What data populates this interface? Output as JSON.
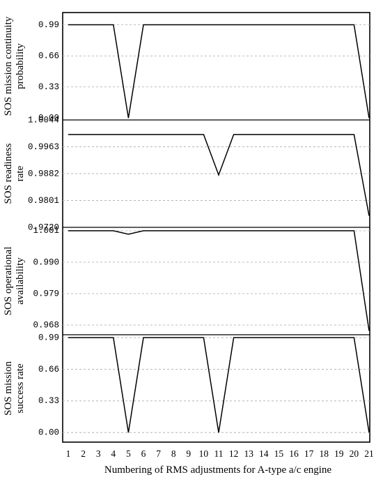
{
  "chart_data": [
    {
      "type": "line",
      "ylabel": [
        "SOS mission continuity",
        "probability"
      ],
      "yticks": [
        "0.99",
        "0.66",
        "0.33",
        "0.00"
      ],
      "ylim": [
        -0.02,
        1.12
      ],
      "x": [
        1,
        2,
        3,
        4,
        5,
        6,
        7,
        8,
        9,
        10,
        11,
        12,
        13,
        14,
        15,
        16,
        17,
        18,
        19,
        20,
        21
      ],
      "values": [
        0.99,
        0.99,
        0.99,
        0.99,
        0.0,
        0.99,
        0.99,
        0.99,
        0.99,
        0.99,
        0.99,
        0.99,
        0.99,
        0.99,
        0.99,
        0.99,
        0.99,
        0.99,
        0.99,
        0.99,
        0.0
      ]
    },
    {
      "type": "line",
      "ylabel": [
        "SOS readiness",
        "rate"
      ],
      "yticks": [
        "1.0044",
        "0.9963",
        "0.9882",
        "0.9801",
        "0.9720"
      ],
      "ylim": [
        0.972,
        1.0044
      ],
      "x": [
        1,
        2,
        3,
        4,
        5,
        6,
        7,
        8,
        9,
        10,
        11,
        12,
        13,
        14,
        15,
        16,
        17,
        18,
        19,
        20,
        21
      ],
      "values": [
        1.0,
        1.0,
        1.0,
        1.0,
        1.0,
        1.0,
        1.0,
        1.0,
        1.0,
        1.0,
        0.9878,
        1.0,
        1.0,
        1.0,
        1.0,
        1.0,
        1.0,
        1.0,
        1.0,
        1.0,
        0.9755
      ]
    },
    {
      "type": "line",
      "ylabel": [
        "SOS operational",
        "availability"
      ],
      "yticks": [
        "1.001",
        "0.990",
        "0.979",
        "0.968"
      ],
      "ylim": [
        0.9646,
        1.0022
      ],
      "x": [
        1,
        2,
        3,
        4,
        5,
        6,
        7,
        8,
        9,
        10,
        11,
        12,
        13,
        14,
        15,
        16,
        17,
        18,
        19,
        20,
        21
      ],
      "values": [
        1.001,
        1.001,
        1.001,
        1.001,
        0.9998,
        1.001,
        1.001,
        1.001,
        1.001,
        1.001,
        1.001,
        1.001,
        1.001,
        1.001,
        1.001,
        1.001,
        1.001,
        1.001,
        1.001,
        1.001,
        0.966
      ]
    },
    {
      "type": "line",
      "ylabel": [
        "SOS mission",
        "success rate"
      ],
      "yticks": [
        "0.99",
        "0.66",
        "0.33",
        "0.00"
      ],
      "ylim": [
        -0.1,
        1.02
      ],
      "x": [
        1,
        2,
        3,
        4,
        5,
        6,
        7,
        8,
        9,
        10,
        11,
        12,
        13,
        14,
        15,
        16,
        17,
        18,
        19,
        20,
        21
      ],
      "values": [
        0.99,
        0.99,
        0.99,
        0.99,
        0.0,
        0.99,
        0.99,
        0.99,
        0.99,
        0.99,
        0.0,
        0.99,
        0.99,
        0.99,
        0.99,
        0.99,
        0.99,
        0.99,
        0.99,
        0.99,
        0.0
      ]
    }
  ],
  "xticks": [
    "1",
    "2",
    "3",
    "4",
    "5",
    "6",
    "7",
    "8",
    "9",
    "10",
    "11",
    "12",
    "13",
    "14",
    "15",
    "16",
    "17",
    "18",
    "19",
    "20",
    "21"
  ],
  "xlabel": "Numbering of RMS adjustments for A-type a/c engine",
  "grid": "horizontal dashed"
}
